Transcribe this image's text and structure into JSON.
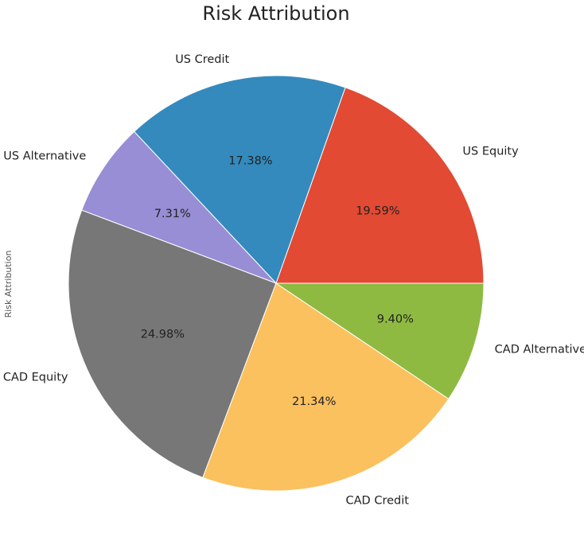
{
  "chart_data": {
    "type": "pie",
    "title": "Risk Attribution",
    "ylabel": "Risk Attribution",
    "start_angle_deg": 0,
    "direction": "counterclockwise",
    "slices": [
      {
        "label": "US Equity",
        "value": 19.59,
        "pct_text": "19.59%",
        "color": "#E24A33"
      },
      {
        "label": "US Credit",
        "value": 17.38,
        "pct_text": "17.38%",
        "color": "#348ABD"
      },
      {
        "label": "US Alternative",
        "value": 7.31,
        "pct_text": "7.31%",
        "color": "#988ED5"
      },
      {
        "label": "CAD Equity",
        "value": 24.98,
        "pct_text": "24.98%",
        "color": "#777777"
      },
      {
        "label": "CAD Credit",
        "value": 21.34,
        "pct_text": "21.34%",
        "color": "#FBC15E"
      },
      {
        "label": "CAD Alternative",
        "value": 9.4,
        "pct_text": "9.40%",
        "color": "#8EBA42"
      }
    ]
  }
}
